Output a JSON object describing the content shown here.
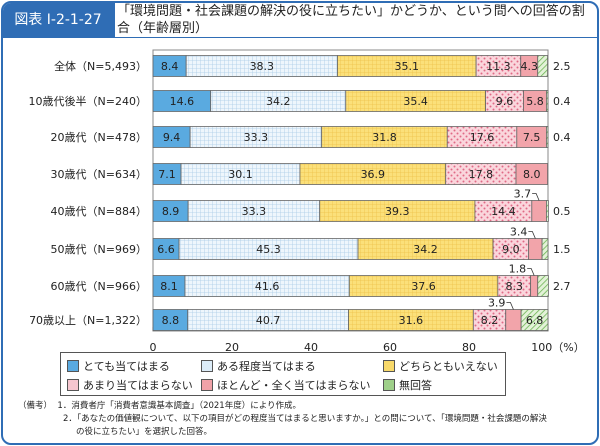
{
  "header": {
    "figure_id": "図表 I-2-1-27",
    "title": "「環境問題・社会課題の解決の役に立ちたい」かどうか、という問への回答の割合（年齢層別）"
  },
  "chart_data": {
    "type": "stacked-bar-horizontal",
    "title": "「環境問題・社会課題の解決の役に立ちたい」かどうか、という問への回答の割合（年齢層別）",
    "xlim": [
      0,
      100
    ],
    "xticks": [
      "0",
      "20",
      "40",
      "60",
      "80",
      "100（%）"
    ],
    "categories": [
      "全体（N=5,493）",
      "10歳代後半（N=240）",
      "20歳代（N=478）",
      "30歳代（N=634）",
      "40歳代（N=884）",
      "50歳代（N=969）",
      "60歳代（N=966）",
      "70歳以上（N=1,322）"
    ],
    "series": [
      {
        "name": "とても当てはまる",
        "color": "#5aaae0",
        "values": [
          8.4,
          14.6,
          9.4,
          7.1,
          8.9,
          6.6,
          8.1,
          8.8
        ]
      },
      {
        "name": "ある程度当てはまる",
        "color": "#dcecf8",
        "values": [
          38.3,
          34.2,
          33.3,
          30.1,
          33.3,
          45.3,
          41.6,
          40.7
        ]
      },
      {
        "name": "どちらともいえない",
        "color": "#f8d96a",
        "values": [
          35.1,
          35.4,
          31.8,
          36.9,
          39.3,
          34.2,
          37.6,
          31.6
        ]
      },
      {
        "name": "あまり当てはまらない",
        "color": "#f6c6cf",
        "values": [
          11.3,
          9.6,
          17.6,
          17.8,
          14.4,
          9.0,
          8.3,
          8.2
        ]
      },
      {
        "name": "ほとんど・全く当てはまらない",
        "color": "#f0a2a8",
        "values": [
          4.3,
          5.8,
          7.5,
          8.0,
          3.7,
          3.4,
          1.8,
          3.9
        ]
      },
      {
        "name": "無回答",
        "color": "#9fd08a",
        "values": [
          2.5,
          0.4,
          0.4,
          null,
          0.5,
          1.5,
          2.7,
          6.8
        ]
      }
    ],
    "legend_position": "bottom"
  },
  "notes": {
    "label": "（備考）",
    "items": [
      "1．消費者庁「消費者意識基本調査」（2021年度）により作成。",
      "2．「あなたの価値観について、以下の項目がどの程度当てはまると思いますか。」との問について、「環境問題・社会課題の解決",
      "の役に立ちたい」を選択した回答。"
    ]
  }
}
